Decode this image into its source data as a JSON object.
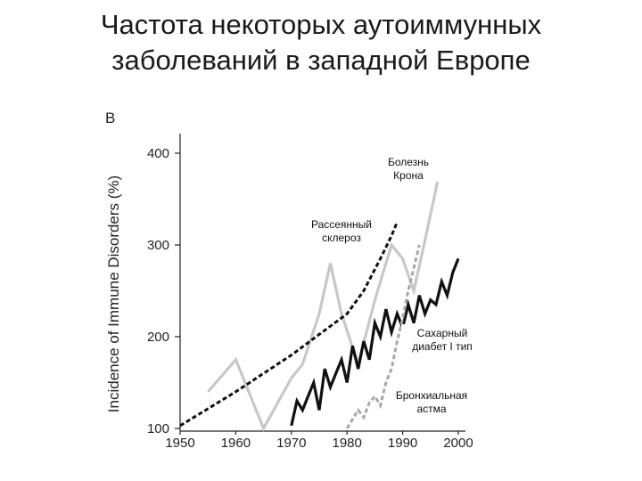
{
  "slide": {
    "title_line1": "Частота некоторых аутоиммунных",
    "title_line2": "заболеваний в западной Европе"
  },
  "chart_data": {
    "type": "line",
    "panel_label": "B",
    "ylabel": "Incidence of Immune Disorders (%)",
    "xlabel": "",
    "xlim": [
      1950,
      2000
    ],
    "ylim": [
      100,
      400
    ],
    "xticks": [
      "1950",
      "1960",
      "1970",
      "1980",
      "1990",
      "2000"
    ],
    "yticks": [
      "100",
      "200",
      "300",
      "400"
    ],
    "grid": false,
    "legend": "none",
    "series": [
      {
        "name": "Болезнь Крона",
        "color": "#c8c8c8",
        "dash": "solid",
        "x": [
          1955,
          1960,
          1965,
          1970,
          1972,
          1975,
          1977,
          1979,
          1982,
          1985,
          1988,
          1990,
          1992,
          1994,
          1997
        ],
        "y": [
          140,
          175,
          100,
          155,
          170,
          225,
          280,
          225,
          170,
          240,
          300,
          285,
          250,
          305,
          390
        ]
      },
      {
        "name": "Рассеянный склероз",
        "color": "#111111",
        "dash": "dashed",
        "x": [
          1950,
          1960,
          1970,
          1980,
          1983,
          1986,
          1988,
          1989
        ],
        "y": [
          103,
          140,
          180,
          225,
          250,
          285,
          310,
          325
        ]
      },
      {
        "name": "Сахарный диабет I тип",
        "color": "#111111",
        "dash": "solid",
        "x": [
          1970,
          1971,
          1972,
          1973,
          1974,
          1975,
          1976,
          1977,
          1978,
          1979,
          1980,
          1981,
          1982,
          1983,
          1984,
          1985,
          1986,
          1987,
          1988,
          1989,
          1990,
          1991,
          1992,
          1993,
          1994,
          1995,
          1996,
          1997,
          1998,
          1999,
          2000
        ],
        "y": [
          103,
          130,
          120,
          135,
          150,
          120,
          165,
          145,
          160,
          175,
          150,
          190,
          165,
          195,
          175,
          215,
          200,
          230,
          205,
          225,
          210,
          235,
          215,
          245,
          225,
          240,
          235,
          260,
          245,
          270,
          285
        ]
      },
      {
        "name": "Бронхиальная астма",
        "color": "#a8a8a8",
        "dash": "dashed",
        "x": [
          1980,
          1981,
          1982,
          1983,
          1984,
          1985,
          1986,
          1987,
          1988,
          1989,
          1990,
          1991,
          1992,
          1993
        ],
        "y": [
          100,
          110,
          120,
          112,
          128,
          135,
          125,
          150,
          165,
          195,
          220,
          250,
          275,
          300
        ]
      }
    ],
    "annotations": [
      {
        "lines": [
          "Болезнь",
          "Крона"
        ],
        "series": "Болезнь Крона"
      },
      {
        "lines": [
          "Рассеянный",
          "склероз"
        ],
        "series": "Рассеянный склероз"
      },
      {
        "lines": [
          "Сахарный",
          "диабет I тип"
        ],
        "series": "Сахарный диабет I тип"
      },
      {
        "lines": [
          "Бронхиальная",
          "астма"
        ],
        "series": "Бронхиальная астма"
      }
    ]
  }
}
